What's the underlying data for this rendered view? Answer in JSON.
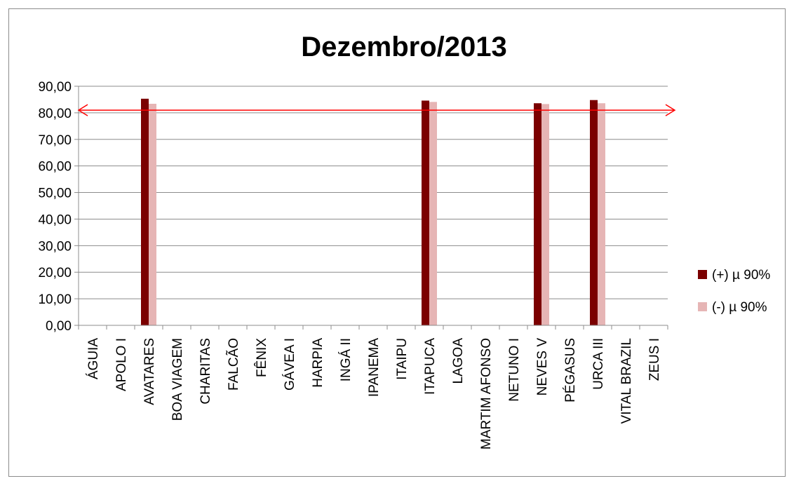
{
  "chart_data": {
    "type": "bar",
    "title": "Dezembro/2013",
    "categories": [
      "ÁGUIA",
      "APOLO I",
      "AVATARES",
      "BOA VIAGEM",
      "CHARITAS",
      "FALCÃO",
      "FÊNIX",
      "GÁVEA I",
      "HARPIA",
      "INGÁ II",
      "IPANEMA",
      "ITAIPU",
      "ITAPUCA",
      "LAGOA",
      "MARTIM AFONSO",
      "NETUNO I",
      "NEVES V",
      "PÉGASUS",
      "URCA III",
      "VITAL BRAZIL",
      "ZEUS I"
    ],
    "series": [
      {
        "name": "(+) µ 90%",
        "color": "#7b0000",
        "values": [
          null,
          null,
          85.3,
          null,
          null,
          null,
          null,
          null,
          null,
          null,
          null,
          null,
          84.6,
          null,
          null,
          null,
          83.6,
          null,
          84.8,
          null,
          null
        ]
      },
      {
        "name": "(-) µ 90%",
        "color": "#e6b5b5",
        "values": [
          null,
          null,
          83.4,
          null,
          null,
          null,
          null,
          null,
          null,
          null,
          null,
          null,
          84.1,
          null,
          null,
          null,
          83.3,
          null,
          83.6,
          null,
          null
        ]
      }
    ],
    "yticks": [
      "0,00",
      "10,00",
      "20,00",
      "30,00",
      "40,00",
      "50,00",
      "60,00",
      "70,00",
      "80,00",
      "90,00"
    ],
    "ylim": [
      0,
      90
    ],
    "reference_line": {
      "value": 81,
      "color": "#ff0000"
    },
    "grid": true,
    "legend": "right"
  }
}
